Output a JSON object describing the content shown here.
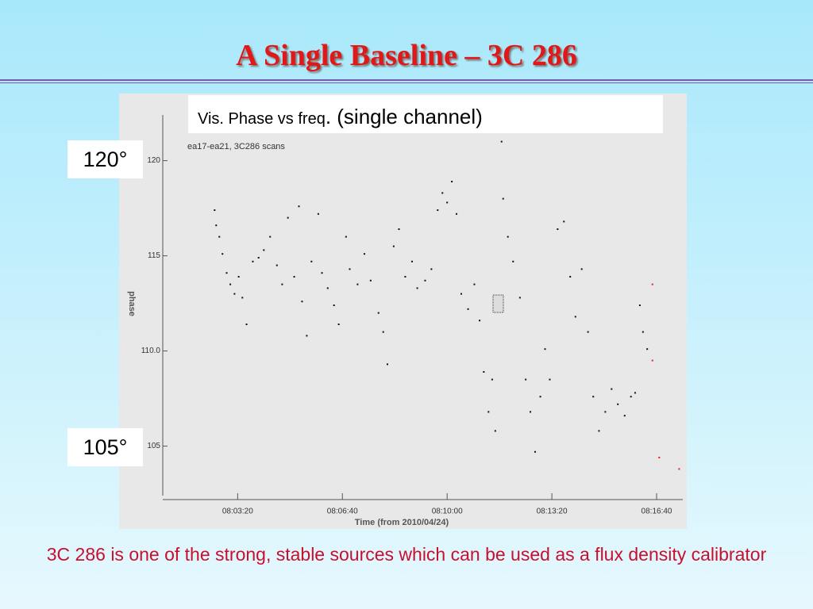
{
  "chart_data": {
    "type": "scatter",
    "slide_title": "A Single Baseline – 3C 286",
    "box_title": "Vis. Phase vs freq",
    "box_title_extra": ". (single channel)",
    "title": "ea17-ea21, 3C286 scans",
    "xlabel": "Time (from 2010/04/24)",
    "ylabel": "phase",
    "upper_marker": "120°",
    "lower_marker": "105°",
    "caption": "3C 286 is one of the strong, stable sources which can be used as a flux density calibrator",
    "xlim": [
      28857,
      29850
    ],
    "ylim": [
      102.4,
      122.4
    ],
    "xticks": [
      {
        "value": 29000,
        "label": "08:03:20"
      },
      {
        "value": 29200,
        "label": "08:06:40"
      },
      {
        "value": 29400,
        "label": "08:10:00"
      },
      {
        "value": 29600,
        "label": "08:13:20"
      },
      {
        "value": 29800,
        "label": "08:16:40"
      }
    ],
    "yticks": [
      {
        "value": 120,
        "label": "120"
      },
      115,
      {
        "value": 110,
        "label": "110.0"
      },
      105
    ],
    "series": [
      {
        "color": "#111111",
        "x": [
          28956,
          28959,
          28965,
          28971,
          28979,
          28986,
          28994,
          29002,
          29009,
          29017,
          29029,
          29040,
          29050,
          29062,
          29075,
          29085,
          29096,
          29108,
          29117,
          29123,
          29132,
          29141,
          29154,
          29161,
          29172,
          29184,
          29193,
          29207,
          29214,
          29229,
          29242,
          29254,
          29269,
          29278,
          29286,
          29298,
          29308,
          29320,
          29333,
          29343,
          29358,
          29370,
          29382,
          29391,
          29400,
          29409,
          29418,
          29427,
          29440,
          29452,
          29462,
          29470,
          29479,
          29486,
          29492,
          29504,
          29507,
          29516,
          29526,
          29539,
          29550,
          29559,
          29568,
          29578,
          29587,
          29596,
          29611,
          29623,
          29635,
          29645,
          29657,
          29669,
          29679,
          29690,
          29702,
          29714,
          29726,
          29739,
          29751,
          29759,
          29768,
          29774,
          29782
        ],
        "values": [
          117.4,
          116.6,
          116.0,
          115.1,
          114.1,
          113.5,
          113.0,
          113.9,
          112.8,
          111.4,
          114.7,
          114.9,
          115.3,
          116.0,
          114.5,
          113.5,
          117.0,
          113.9,
          117.6,
          112.6,
          110.8,
          114.7,
          117.2,
          114.1,
          113.3,
          112.4,
          111.4,
          116.0,
          114.3,
          113.5,
          115.1,
          113.7,
          112.0,
          111.0,
          109.3,
          115.5,
          116.4,
          113.9,
          114.7,
          113.3,
          113.7,
          114.3,
          117.4,
          118.3,
          117.8,
          118.9,
          117.2,
          113.0,
          112.2,
          113.5,
          111.6,
          108.9,
          106.8,
          108.5,
          105.8,
          121.0,
          118.0,
          116.0,
          114.7,
          112.8,
          108.5,
          106.8,
          104.7,
          107.6,
          110.1,
          108.5,
          116.4,
          116.8,
          113.9,
          111.8,
          114.3,
          111.0,
          107.6,
          105.8,
          106.8,
          108.0,
          107.2,
          106.6,
          107.6,
          107.8,
          112.4,
          111.0,
          110.1
        ]
      },
      {
        "color": "#e02020",
        "x": [
          29792,
          29792,
          29805,
          29843
        ],
        "values": [
          113.5,
          109.5,
          104.4,
          103.8
        ]
      }
    ]
  }
}
